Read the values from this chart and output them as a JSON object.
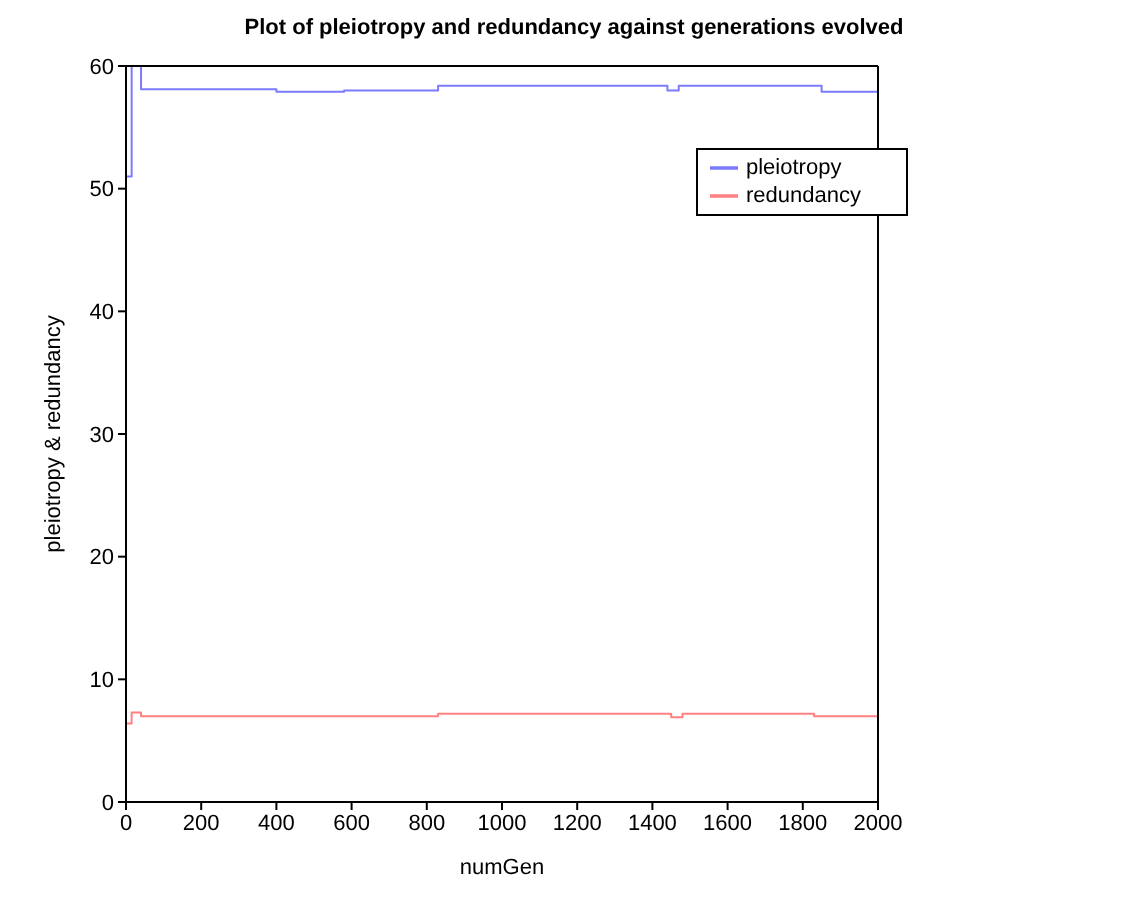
{
  "chart_data": {
    "type": "step",
    "title": "Plot of pleiotropy and redundancy against generations evolved",
    "xlabel": "numGen",
    "ylabel": "pleiotropy & redundancy",
    "xlim": [
      0,
      2000
    ],
    "xticks": [
      0,
      200,
      400,
      600,
      800,
      1000,
      1200,
      1400,
      1600,
      1800,
      2000
    ],
    "ylim": [
      0,
      60
    ],
    "yticks": [
      0,
      10,
      20,
      30,
      40,
      50,
      60
    ],
    "grid": false,
    "legend": "top right",
    "marker": "none",
    "line_style": "solid",
    "series": [
      {
        "name": "pleiotropy",
        "color": "#7b7bff",
        "x": [
          0,
          15,
          40,
          400,
          580,
          830,
          1440,
          1470,
          1850,
          2000
        ],
        "values": [
          51,
          60,
          58.1,
          57.9,
          58.0,
          58.4,
          58.0,
          58.4,
          57.9,
          57.9
        ]
      },
      {
        "name": "redundancy",
        "color": "#ff8080",
        "x": [
          0,
          15,
          40,
          830,
          1450,
          1480,
          1830,
          2000
        ],
        "values": [
          6.4,
          7.3,
          7.0,
          7.2,
          6.9,
          7.2,
          7.0,
          7.0
        ]
      }
    ]
  }
}
